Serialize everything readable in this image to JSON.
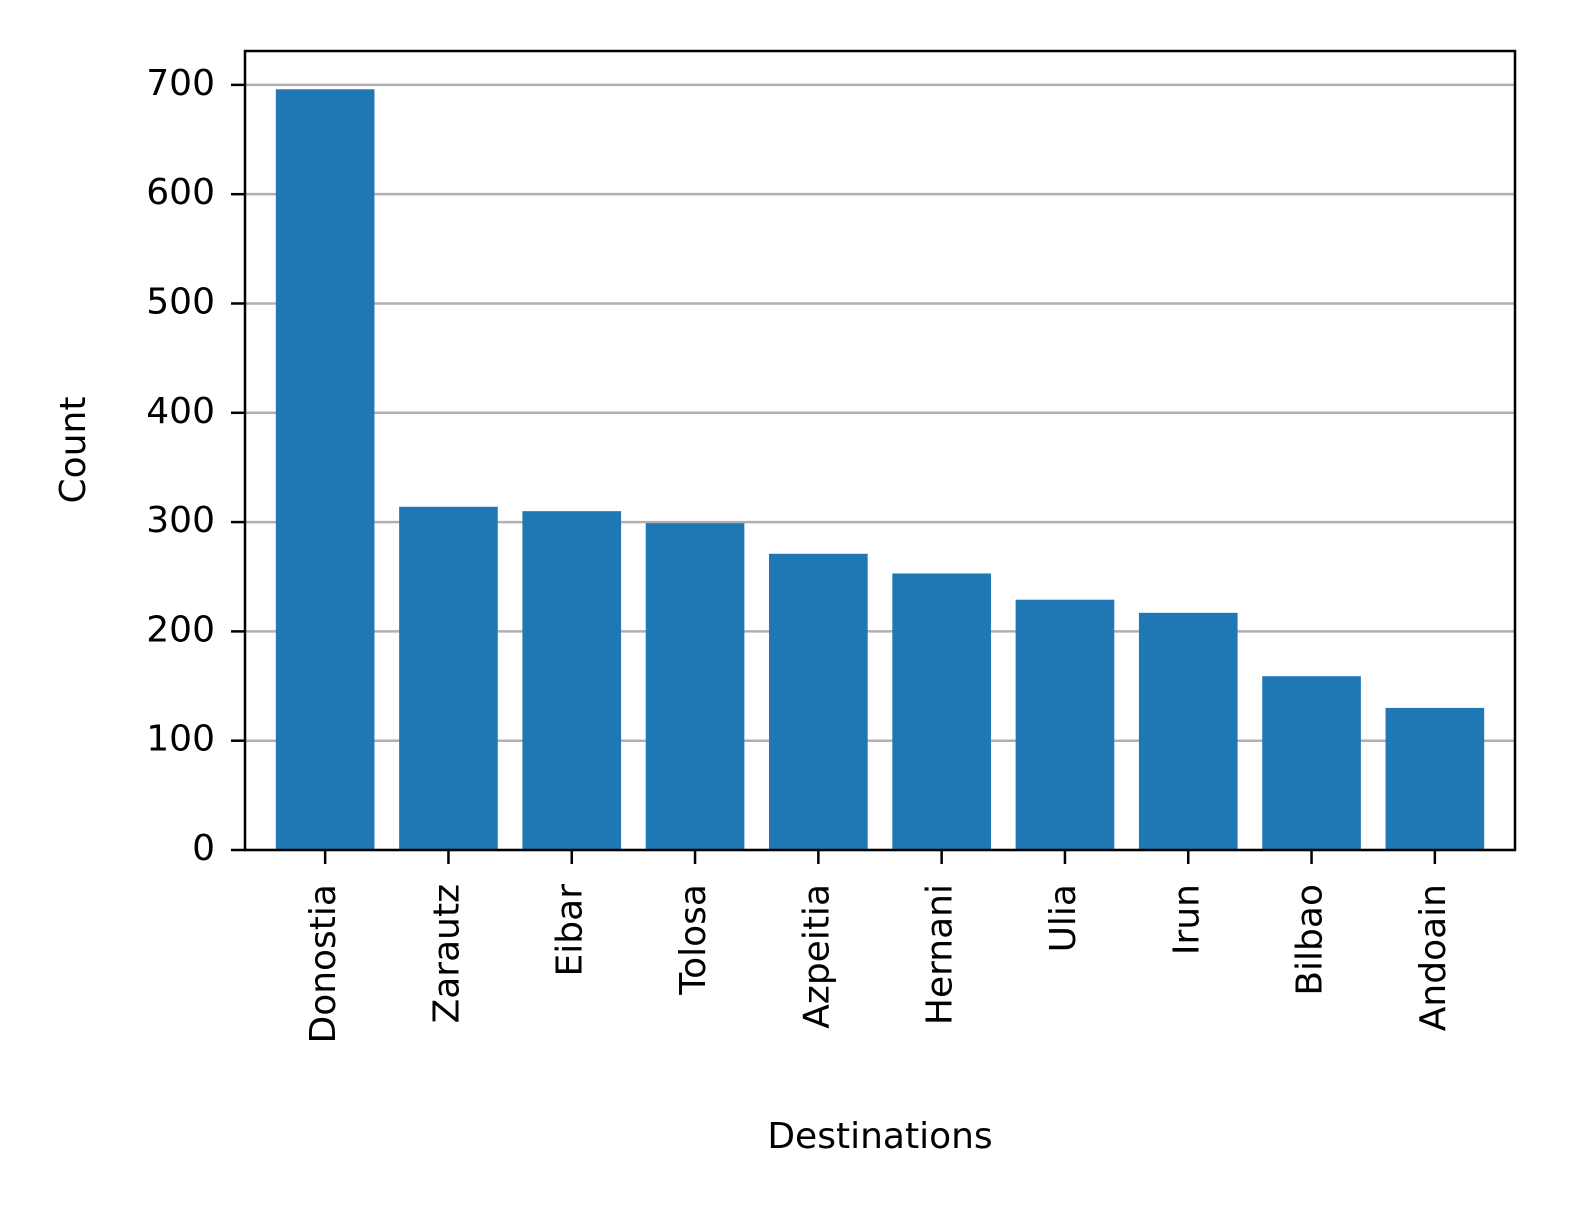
{
  "chart_data": {
    "type": "bar",
    "x_label": "Destinations",
    "y_label": "Count",
    "categories": [
      "Donostia",
      "Zarautz",
      "Eibar",
      "Tolosa",
      "Azpeitia",
      "Hernani",
      "Ulia",
      "Irun",
      "Bilbao",
      "Andoain"
    ],
    "values": [
      696,
      314,
      310,
      299,
      271,
      253,
      229,
      217,
      159,
      130
    ],
    "color": "#1f77b4",
    "ylim": [
      0,
      731
    ],
    "yticks": [
      0,
      100,
      200,
      300,
      400,
      500,
      600,
      700
    ],
    "grid": true
  }
}
